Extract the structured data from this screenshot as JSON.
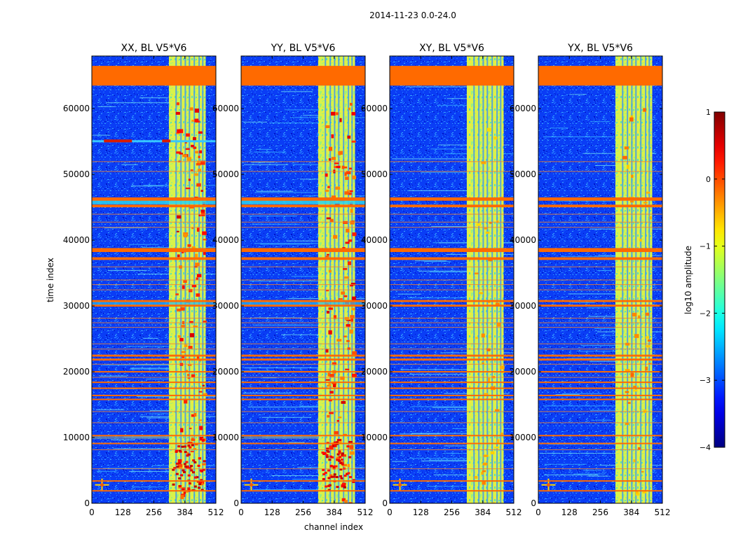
{
  "figure": {
    "suptitle": "2014-11-23 0.0-24.0"
  },
  "chart_data": {
    "type": "heatmap",
    "title": "2014-11-23 0.0-24.0",
    "xlabel": "channel index",
    "ylabel": "time index",
    "xlim": [
      0,
      512
    ],
    "ylim": [
      0,
      68000
    ],
    "x_ticks": [
      "0",
      "128",
      "256",
      "384",
      "512"
    ],
    "y_ticks": [
      "0",
      "10000",
      "20000",
      "30000",
      "40000",
      "50000",
      "60000"
    ],
    "panels": [
      {
        "title": "XX, BL V5*V6",
        "rfi_hot_strip": true,
        "bright_low_band": true,
        "strong_band_blobs": true
      },
      {
        "title": "YY, BL V5*V6",
        "rfi_hot_strip": false,
        "bright_low_band": true,
        "strong_band_blobs": true
      },
      {
        "title": "XY, BL V5*V6",
        "rfi_hot_strip": false,
        "bright_low_band": false,
        "strong_band_blobs": false
      },
      {
        "title": "YX, BL V5*V6",
        "rfi_hot_strip": false,
        "bright_low_band": false,
        "strong_band_blobs": false
      }
    ],
    "flagged_rows": [
      [
        63500,
        66500
      ],
      [
        46500,
        46000
      ],
      [
        45400,
        45000
      ],
      [
        38800,
        38200
      ],
      [
        37400,
        37000
      ],
      [
        30900,
        30600
      ],
      [
        30200,
        29900
      ],
      [
        22600,
        22300
      ],
      [
        22000,
        21700
      ],
      [
        20100,
        19900
      ],
      [
        18500,
        18300
      ],
      [
        17600,
        17400
      ],
      [
        16500,
        16300
      ],
      [
        15900,
        15700
      ],
      [
        10400,
        10200
      ],
      [
        9200,
        9000
      ],
      [
        3500,
        3300
      ],
      [
        2000,
        1800
      ]
    ],
    "thin_flag_rows": [
      52000,
      50500,
      44000,
      42800,
      42000,
      36000,
      34000,
      33300,
      32500,
      28200,
      27500,
      26800,
      24300,
      23500,
      21200,
      19200,
      14000,
      12300,
      8200,
      5300
    ],
    "colorbar": {
      "label": "log10 amplitude",
      "range": [
        -4,
        1
      ],
      "tick_labels": [
        "1",
        "0",
        "−1",
        "−2",
        "−3",
        "−4"
      ],
      "colormap": "jet"
    }
  }
}
